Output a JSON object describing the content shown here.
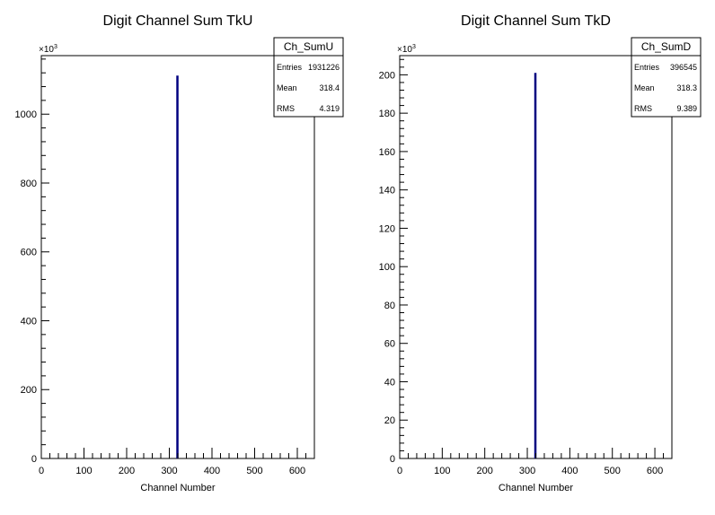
{
  "chart_data": [
    {
      "type": "bar",
      "title": "Digit Channel Sum TkU",
      "xlabel": "Channel Number",
      "ylabel": "",
      "xlim": [
        0,
        640
      ],
      "ylim": [
        0,
        1170
      ],
      "y_multiplier_label": "×10",
      "y_multiplier_exp": "3",
      "xticks": [
        "0",
        "100",
        "200",
        "300",
        "400",
        "500",
        "600"
      ],
      "yticks": [
        "0",
        "200",
        "400",
        "600",
        "800",
        "1000"
      ],
      "bins": [
        {
          "x": 319,
          "value": 1112
        }
      ],
      "color": "#000080",
      "grid": false,
      "stats": {
        "name": "Ch_SumU",
        "rows": [
          {
            "label": "Entries",
            "value": "1931226"
          },
          {
            "label": "Mean",
            "value": "318.4"
          },
          {
            "label": "RMS",
            "value": "4.319"
          }
        ]
      }
    },
    {
      "type": "bar",
      "title": "Digit Channel Sum TkD",
      "xlabel": "Channel Number",
      "ylabel": "",
      "xlim": [
        0,
        640
      ],
      "ylim": [
        0,
        210
      ],
      "y_multiplier_label": "×10",
      "y_multiplier_exp": "3",
      "xticks": [
        "0",
        "100",
        "200",
        "300",
        "400",
        "500",
        "600"
      ],
      "yticks": [
        "0",
        "20",
        "40",
        "60",
        "80",
        "100",
        "120",
        "140",
        "160",
        "180",
        "200"
      ],
      "bins": [
        {
          "x": 319,
          "value": 201
        }
      ],
      "color": "#000080",
      "grid": false,
      "stats": {
        "name": "Ch_SumD",
        "rows": [
          {
            "label": "Entries",
            "value": "396545"
          },
          {
            "label": "Mean",
            "value": "318.3"
          },
          {
            "label": "RMS",
            "value": "9.389"
          }
        ]
      }
    }
  ]
}
